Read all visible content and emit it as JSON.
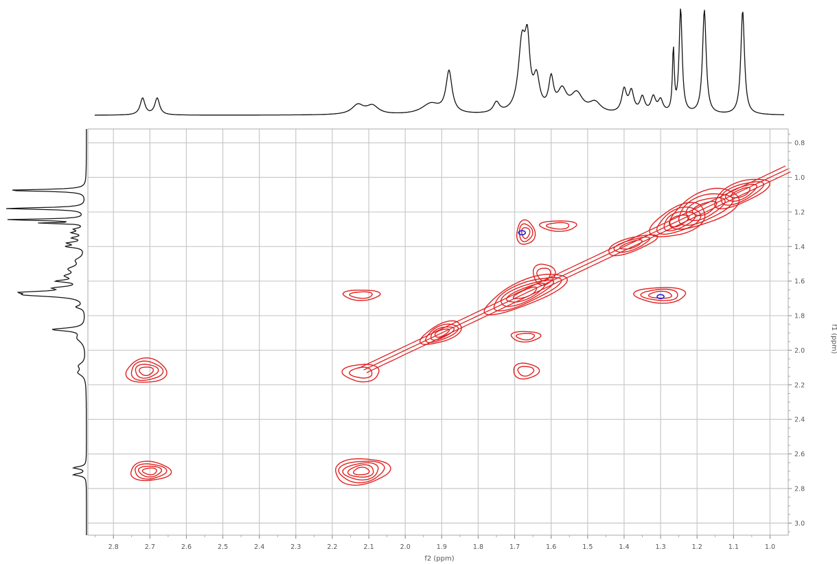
{
  "chart_data": {
    "type": "contour",
    "xlabel": "f2 (ppm)",
    "ylabel": "f1 (ppm)",
    "xlim": [
      2.87,
      0.95
    ],
    "ylim": [
      0.72,
      3.07
    ],
    "x_ticks": [
      "2.8",
      "2.7",
      "2.6",
      "2.5",
      "2.4",
      "2.3",
      "2.2",
      "2.1",
      "2.0",
      "1.9",
      "1.8",
      "1.7",
      "1.6",
      "1.5",
      "1.4",
      "1.3",
      "1.2",
      "1.1",
      "1.0"
    ],
    "y_ticks": [
      "0.8",
      "1.0",
      "1.2",
      "1.4",
      "1.6",
      "1.8",
      "2.0",
      "2.2",
      "2.4",
      "2.6",
      "2.8",
      "3.0"
    ],
    "grid": true,
    "colors": {
      "contour_positive": "#e02020",
      "contour_negative": "#2020d0",
      "spectrum": "#111111",
      "grid": "#c8c8c8"
    },
    "projection_1d": {
      "peaks": [
        {
          "ppm": 2.72,
          "height": 0.16,
          "width": 0.008
        },
        {
          "ppm": 2.68,
          "height": 0.16,
          "width": 0.008
        },
        {
          "ppm": 2.13,
          "height": 0.09,
          "width": 0.02
        },
        {
          "ppm": 2.09,
          "height": 0.08,
          "width": 0.02
        },
        {
          "ppm": 1.93,
          "height": 0.1,
          "width": 0.03
        },
        {
          "ppm": 1.88,
          "height": 0.4,
          "width": 0.01
        },
        {
          "ppm": 1.75,
          "height": 0.1,
          "width": 0.01
        },
        {
          "ppm": 1.68,
          "height": 0.65,
          "width": 0.012
        },
        {
          "ppm": 1.665,
          "height": 0.55,
          "width": 0.008
        },
        {
          "ppm": 1.64,
          "height": 0.3,
          "width": 0.01
        },
        {
          "ppm": 1.6,
          "height": 0.3,
          "width": 0.008
        },
        {
          "ppm": 1.57,
          "height": 0.2,
          "width": 0.015
        },
        {
          "ppm": 1.53,
          "height": 0.18,
          "width": 0.02
        },
        {
          "ppm": 1.48,
          "height": 0.1,
          "width": 0.02
        },
        {
          "ppm": 1.4,
          "height": 0.22,
          "width": 0.008
        },
        {
          "ppm": 1.38,
          "height": 0.2,
          "width": 0.008
        },
        {
          "ppm": 1.35,
          "height": 0.15,
          "width": 0.008
        },
        {
          "ppm": 1.32,
          "height": 0.15,
          "width": 0.008
        },
        {
          "ppm": 1.3,
          "height": 0.12,
          "width": 0.008
        },
        {
          "ppm": 1.265,
          "height": 0.6,
          "width": 0.003
        },
        {
          "ppm": 1.245,
          "height": 1.0,
          "width": 0.005
        },
        {
          "ppm": 1.18,
          "height": 1.0,
          "width": 0.006
        },
        {
          "ppm": 1.075,
          "height": 1.0,
          "width": 0.006
        }
      ]
    },
    "contours": [
      {
        "x": 2.71,
        "y": 2.12,
        "rx": 0.055,
        "ry": 0.07,
        "levels": 4,
        "tilt": -0.05
      },
      {
        "x": 2.7,
        "y": 2.7,
        "rx": 0.055,
        "ry": 0.055,
        "levels": 4,
        "tilt": 0
      },
      {
        "x": 2.12,
        "y": 2.7,
        "rx": 0.075,
        "ry": 0.075,
        "levels": 5,
        "tilt": -0.1
      },
      {
        "x": 2.12,
        "y": 1.68,
        "rx": 0.05,
        "ry": 0.03,
        "levels": 2,
        "tilt": 0
      },
      {
        "x": 2.12,
        "y": 2.13,
        "rx": 0.05,
        "ry": 0.05,
        "levels": 2,
        "tilt": 0
      },
      {
        "x": 1.9,
        "y": 1.9,
        "rx": 0.06,
        "ry": 0.05,
        "levels": 4,
        "tilt": -0.5
      },
      {
        "x": 1.67,
        "y": 1.67,
        "rx": 0.12,
        "ry": 0.07,
        "levels": 5,
        "tilt": -0.5
      },
      {
        "x": 1.67,
        "y": 1.32,
        "rx": 0.025,
        "ry": 0.07,
        "levels": 3,
        "tilt": 0
      },
      {
        "x": 1.67,
        "y": 2.12,
        "rx": 0.035,
        "ry": 0.045,
        "levels": 2,
        "tilt": 0
      },
      {
        "x": 1.67,
        "y": 1.92,
        "rx": 0.04,
        "ry": 0.03,
        "levels": 2,
        "tilt": 0
      },
      {
        "x": 1.3,
        "y": 1.68,
        "rx": 0.07,
        "ry": 0.045,
        "levels": 3,
        "tilt": 0
      },
      {
        "x": 1.25,
        "y": 1.25,
        "rx": 0.08,
        "ry": 0.08,
        "levels": 4,
        "tilt": -0.5
      },
      {
        "x": 1.18,
        "y": 1.18,
        "rx": 0.1,
        "ry": 0.09,
        "levels": 4,
        "tilt": -0.5
      },
      {
        "x": 1.08,
        "y": 1.09,
        "rx": 0.08,
        "ry": 0.06,
        "levels": 4,
        "tilt": -0.5
      },
      {
        "x": 1.38,
        "y": 1.39,
        "rx": 0.07,
        "ry": 0.04,
        "levels": 3,
        "tilt": -0.4
      },
      {
        "x": 1.62,
        "y": 1.56,
        "rx": 0.03,
        "ry": 0.06,
        "levels": 2,
        "tilt": 0
      },
      {
        "x": 1.58,
        "y": 1.28,
        "rx": 0.05,
        "ry": 0.03,
        "levels": 2,
        "tilt": 0
      }
    ],
    "diagonal": {
      "from": 2.12,
      "to": 0.95
    },
    "negative_peaks": [
      {
        "x": 1.68,
        "y": 1.32
      },
      {
        "x": 1.3,
        "y": 1.69
      }
    ]
  }
}
